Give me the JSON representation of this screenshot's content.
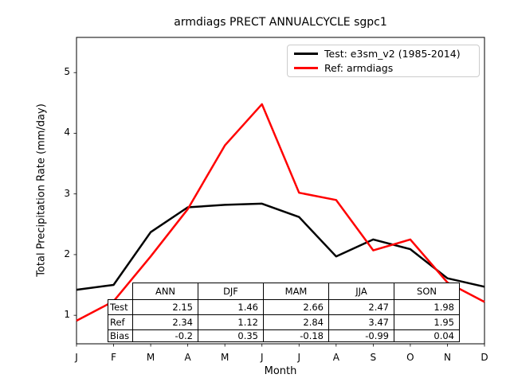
{
  "title": "armdiags PRECT ANNUALCYCLE sgpc1",
  "chart_data": {
    "type": "line",
    "title": "armdiags PRECT ANNUALCYCLE sgpc1",
    "xlabel": "Month",
    "ylabel": "Total Precipitation Rate (mm/day)",
    "x_tick_labels": [
      "J",
      "F",
      "M",
      "A",
      "M",
      "J",
      "J",
      "A",
      "S",
      "O",
      "N",
      "D"
    ],
    "y_ticks": [
      1,
      2,
      3,
      4,
      5
    ],
    "ylim": [
      0.53,
      5.58
    ],
    "grid": false,
    "legend_position": "upper right",
    "series": [
      {
        "name": "Test: e3sm_v2 (1985-2014)",
        "color": "#000000",
        "values": [
          1.42,
          1.5,
          2.37,
          2.78,
          2.82,
          2.84,
          2.62,
          1.97,
          2.25,
          2.09,
          1.61,
          1.47
        ]
      },
      {
        "name": "Ref: armdiags",
        "color": "#ff0000",
        "values": [
          0.91,
          1.23,
          1.97,
          2.75,
          3.8,
          4.48,
          3.02,
          2.9,
          2.07,
          2.25,
          1.54,
          1.22
        ]
      }
    ]
  },
  "table": {
    "col_headers": [
      "ANN",
      "DJF",
      "MAM",
      "JJA",
      "SON"
    ],
    "rows": [
      {
        "label": "Test",
        "values": [
          "2.15",
          "1.46",
          "2.66",
          "2.47",
          "1.98"
        ]
      },
      {
        "label": "Ref",
        "values": [
          "2.34",
          "1.12",
          "2.84",
          "3.47",
          "1.95"
        ]
      },
      {
        "label": "Bias",
        "values": [
          "-0.2",
          "0.35",
          "-0.18",
          "-0.99",
          "0.04"
        ]
      }
    ]
  },
  "colors": {
    "test_line": "#000000",
    "ref_line": "#ff0000",
    "axis": "#000000",
    "legend_border": "#cccccc"
  }
}
